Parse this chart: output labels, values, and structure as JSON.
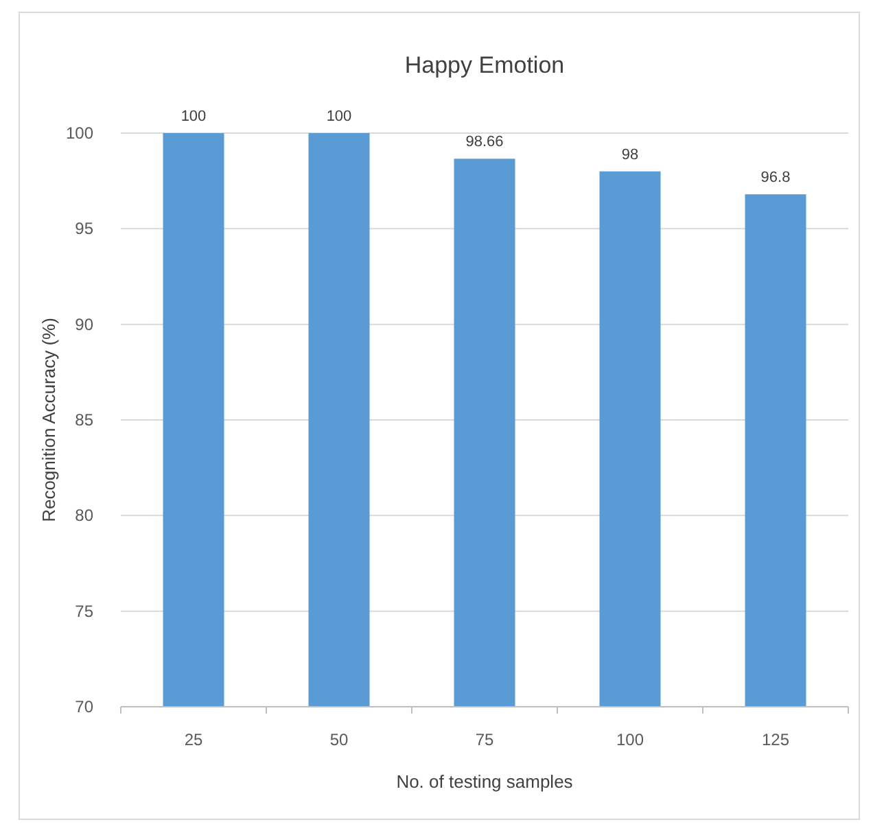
{
  "chart_data": {
    "type": "bar",
    "title": "Happy Emotion",
    "xlabel": "No. of testing samples",
    "ylabel": "Recognition Accuracy (%)",
    "categories": [
      "25",
      "50",
      "75",
      "100",
      "125"
    ],
    "values": [
      100,
      100,
      98.66,
      98,
      96.8
    ],
    "color": "#5b9bd5",
    "ylim": [
      70,
      100
    ],
    "yticks": [
      70,
      75,
      80,
      85,
      90,
      95,
      100
    ],
    "grid": "y",
    "data_labels": true
  }
}
